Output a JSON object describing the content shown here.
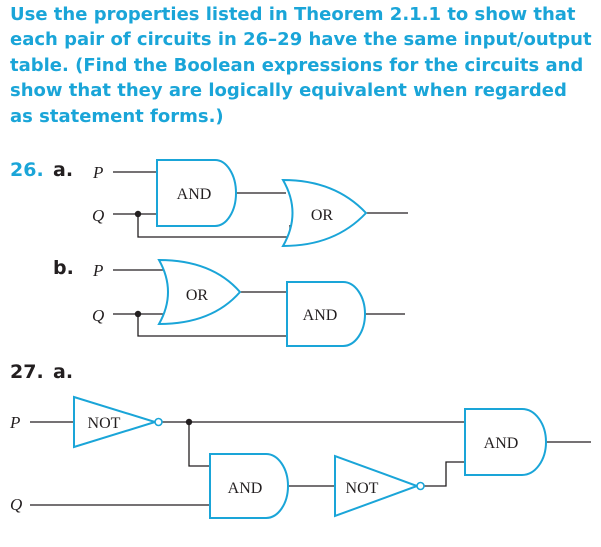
{
  "instructions": "Use the properties listed in Theorem 2.1.1 to show that each pair of circuits in 26–29 have the same input/output table. (Find the Boolean expressions for the circuits and show that they are logically equivalent when regarded as statement forms.)",
  "colors": {
    "accent": "#1aa5d8",
    "gate_stroke": "#1aa5d8",
    "wire": "#231f20",
    "text": "#231f20"
  },
  "problems": [
    {
      "number": "26.",
      "parts": [
        {
          "label": "a.",
          "inputs": [
            "P",
            "Q"
          ],
          "gates": [
            "AND",
            "OR"
          ]
        },
        {
          "label": "b.",
          "inputs": [
            "P",
            "Q"
          ],
          "gates": [
            "OR",
            "AND"
          ]
        }
      ]
    },
    {
      "number": "27.",
      "parts": [
        {
          "label": "a.",
          "inputs": [
            "P",
            "Q"
          ],
          "gates": [
            "NOT",
            "AND",
            "NOT",
            "AND"
          ]
        }
      ]
    }
  ]
}
